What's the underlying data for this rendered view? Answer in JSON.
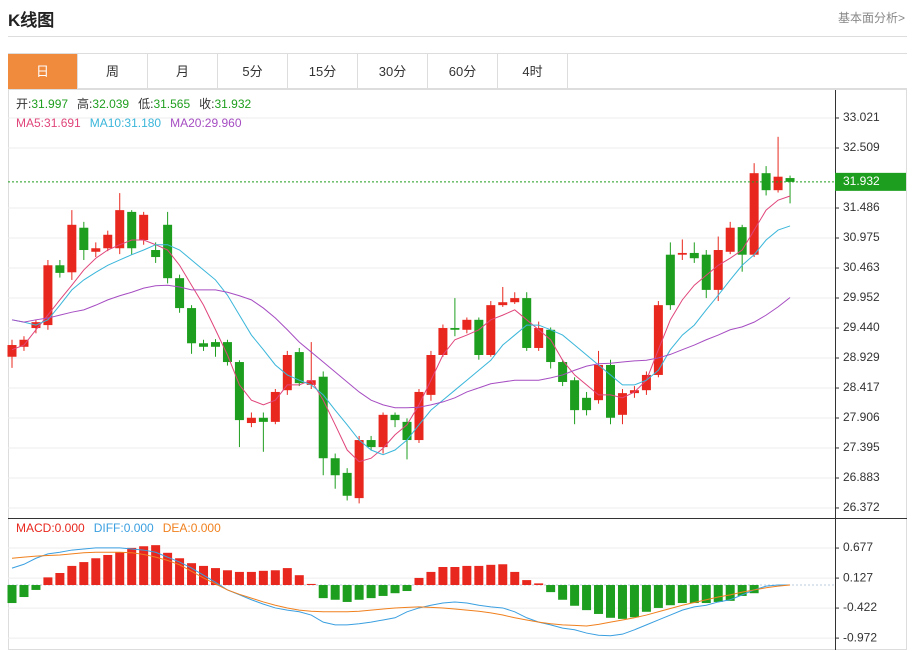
{
  "header": {
    "title": "K线图",
    "link": "基本面分析>"
  },
  "tabs": [
    "日",
    "周",
    "月",
    "5分",
    "15分",
    "30分",
    "60分",
    "4时"
  ],
  "active_tab": "日",
  "chart_data": [
    {
      "type": "candlestick",
      "up_color": "#e8281e",
      "down_color": "#1e9e1e",
      "grid": true,
      "ylim": [
        26.218,
        33.464
      ],
      "yticks": [
        33.021,
        32.509,
        31.486,
        30.975,
        30.463,
        29.952,
        {
          "value": 29.44,
          "label": "29.440"
        },
        28.929,
        28.417,
        27.906,
        27.395,
        26.883,
        26.372
      ],
      "price_line": {
        "value": 31.932,
        "label": "31.932",
        "color": "#1e9e1e"
      },
      "info": {
        "color": "#1e9e1e",
        "items": [
          {
            "label": "开:",
            "value": "31.997"
          },
          {
            "label": "高:",
            "value": "32.039"
          },
          {
            "label": "低:",
            "value": "31.565"
          },
          {
            "label": "收:",
            "value": "31.932"
          }
        ]
      },
      "open": [
        28.95,
        29.12,
        29.44,
        29.49,
        30.51,
        30.39,
        31.15,
        30.74,
        30.8,
        30.8,
        31.42,
        30.94,
        30.77,
        31.2,
        30.29,
        29.78,
        29.18,
        29.2,
        29.2,
        28.86,
        27.82,
        27.91,
        27.84,
        28.38,
        29.03,
        28.47,
        28.61,
        27.22,
        26.97,
        26.54,
        27.53,
        27.41,
        27.96,
        27.84,
        27.53,
        28.3,
        28.98,
        29.44,
        29.41,
        29.58,
        28.98,
        29.83,
        29.88,
        29.95,
        29.1,
        29.41,
        28.86,
        28.55,
        28.25,
        28.21,
        28.81,
        27.96,
        28.33,
        28.38,
        28.64,
        30.69,
        30.69,
        30.72,
        30.69,
        30.09,
        30.74,
        31.16,
        30.69,
        32.08,
        31.79,
        31.997
      ],
      "high": [
        29.24,
        29.3,
        29.58,
        30.6,
        30.6,
        31.45,
        31.25,
        30.9,
        31.1,
        31.74,
        31.45,
        31.42,
        30.9,
        31.42,
        30.35,
        29.83,
        29.24,
        29.25,
        29.24,
        28.89,
        28.0,
        28.0,
        28.4,
        29.05,
        29.1,
        29.2,
        28.7,
        27.3,
        27.05,
        27.6,
        27.6,
        28.0,
        28.0,
        27.9,
        28.4,
        29.05,
        29.5,
        29.95,
        29.62,
        29.62,
        29.9,
        30.14,
        30.05,
        30.05,
        29.55,
        29.45,
        28.9,
        28.6,
        28.35,
        29.05,
        28.9,
        28.4,
        28.45,
        28.7,
        29.9,
        30.9,
        30.95,
        30.9,
        30.77,
        31.0,
        31.25,
        31.2,
        32.25,
        32.2,
        32.7,
        32.039
      ],
      "low": [
        28.76,
        29.05,
        29.35,
        29.41,
        30.3,
        30.26,
        30.6,
        30.65,
        30.75,
        30.7,
        30.69,
        30.86,
        30.55,
        30.2,
        29.7,
        29.0,
        29.05,
        28.95,
        28.8,
        27.41,
        27.75,
        27.33,
        27.8,
        28.3,
        28.45,
        28.4,
        26.93,
        26.7,
        26.5,
        26.45,
        27.35,
        27.3,
        27.75,
        27.2,
        27.48,
        28.2,
        28.95,
        29.3,
        29.35,
        28.9,
        28.95,
        29.8,
        29.85,
        29.05,
        29.05,
        28.75,
        28.45,
        27.8,
        27.95,
        28.15,
        27.8,
        27.8,
        28.25,
        28.3,
        28.6,
        29.75,
        30.6,
        30.55,
        29.95,
        29.9,
        30.7,
        30.4,
        30.65,
        31.7,
        31.75,
        31.565
      ],
      "close": [
        29.15,
        29.24,
        29.54,
        30.51,
        30.38,
        31.2,
        30.77,
        30.8,
        31.03,
        31.45,
        30.8,
        31.37,
        30.65,
        30.29,
        29.78,
        29.18,
        29.12,
        29.12,
        28.86,
        27.87,
        27.91,
        27.84,
        28.35,
        28.98,
        28.5,
        28.55,
        27.22,
        26.93,
        26.58,
        27.53,
        27.41,
        27.96,
        27.87,
        27.53,
        28.35,
        28.98,
        29.44,
        29.41,
        29.58,
        28.98,
        29.83,
        29.88,
        29.95,
        29.1,
        29.44,
        28.86,
        28.52,
        28.04,
        28.04,
        28.81,
        27.91,
        28.33,
        28.38,
        28.64,
        29.83,
        29.83,
        30.72,
        30.63,
        30.09,
        30.77,
        31.15,
        30.69,
        32.08,
        31.79,
        32.02,
        31.932
      ],
      "series": [
        {
          "name": "MA5:",
          "legend_value": "31.691",
          "color": "#e0457b",
          "values": [
            29.07,
            29.15,
            29.41,
            29.66,
            29.92,
            30.17,
            30.43,
            30.63,
            30.77,
            30.86,
            30.94,
            30.94,
            30.86,
            30.77,
            30.51,
            30.17,
            29.83,
            29.41,
            28.98,
            28.47,
            28.21,
            28.13,
            28.21,
            28.47,
            28.47,
            28.55,
            28.21,
            27.79,
            27.36,
            27.16,
            27.22,
            27.39,
            27.62,
            27.79,
            28.13,
            28.55,
            28.98,
            29.24,
            29.32,
            29.41,
            29.58,
            29.66,
            29.75,
            29.58,
            29.41,
            29.24,
            28.89,
            28.64,
            28.47,
            28.3,
            28.3,
            28.25,
            28.35,
            28.55,
            29.07,
            29.58,
            29.92,
            30.17,
            30.34,
            30.51,
            30.63,
            30.77,
            31.11,
            31.45,
            31.62,
            31.691
          ]
        },
        {
          "name": "MA10:",
          "legend_value": "31.180",
          "color": "#3ab6da",
          "values": [
            29.58,
            29.54,
            29.49,
            29.58,
            29.83,
            30.09,
            30.26,
            30.39,
            30.51,
            30.6,
            30.69,
            30.77,
            30.86,
            30.86,
            30.77,
            30.6,
            30.43,
            30.26,
            30.0,
            29.66,
            29.32,
            29.07,
            28.81,
            28.64,
            28.55,
            28.47,
            28.3,
            28.04,
            27.79,
            27.53,
            27.36,
            27.28,
            27.36,
            27.53,
            27.79,
            28.04,
            28.21,
            28.38,
            28.55,
            28.72,
            28.89,
            29.15,
            29.32,
            29.49,
            29.49,
            29.41,
            29.32,
            29.15,
            28.98,
            28.81,
            28.64,
            28.47,
            28.47,
            28.55,
            28.72,
            29.07,
            29.32,
            29.49,
            29.75,
            30.0,
            30.26,
            30.51,
            30.69,
            30.94,
            31.11,
            31.18
          ]
        },
        {
          "name": "MA20:",
          "legend_value": "29.960",
          "color": "#a64dc2",
          "values": [
            29.58,
            29.54,
            29.58,
            29.61,
            29.66,
            29.71,
            29.75,
            29.83,
            29.92,
            29.99,
            30.05,
            30.12,
            30.16,
            30.17,
            30.14,
            30.09,
            30.09,
            30.09,
            30.05,
            29.99,
            29.92,
            29.78,
            29.61,
            29.41,
            29.2,
            29.03,
            28.86,
            28.69,
            28.52,
            28.35,
            28.21,
            28.13,
            28.08,
            28.08,
            28.09,
            28.13,
            28.18,
            28.25,
            28.35,
            28.42,
            28.49,
            28.52,
            28.55,
            28.55,
            28.55,
            28.59,
            28.64,
            28.72,
            28.79,
            28.83,
            28.84,
            28.86,
            28.88,
            28.89,
            28.93,
            28.99,
            29.07,
            29.15,
            29.24,
            29.32,
            29.41,
            29.46,
            29.54,
            29.66,
            29.8,
            29.96
          ]
        }
      ]
    },
    {
      "type": "macd",
      "up_color": "#e8281e",
      "down_color": "#1e9e1e",
      "grid": true,
      "ylim": [
        -1.19,
        1.209
      ],
      "yticks": [
        0.677,
        0.127,
        -0.422,
        -0.972
      ],
      "series": [
        {
          "name": "MACD:",
          "legend_value": "0.000",
          "color": "#e8281e",
          "values": [
            -0.33,
            -0.22,
            -0.09,
            0.14,
            0.22,
            0.35,
            0.42,
            0.49,
            0.55,
            0.6,
            0.68,
            0.71,
            0.73,
            0.59,
            0.49,
            0.4,
            0.35,
            0.31,
            0.27,
            0.24,
            0.24,
            0.26,
            0.27,
            0.31,
            0.18,
            0.02,
            -0.24,
            -0.27,
            -0.31,
            -0.27,
            -0.24,
            -0.2,
            -0.15,
            -0.11,
            0.13,
            0.24,
            0.33,
            0.33,
            0.35,
            0.35,
            0.37,
            0.38,
            0.24,
            0.09,
            0.03,
            -0.13,
            -0.27,
            -0.38,
            -0.46,
            -0.53,
            -0.6,
            -0.62,
            -0.59,
            -0.49,
            -0.42,
            -0.37,
            -0.33,
            -0.33,
            -0.33,
            -0.31,
            -0.29,
            -0.2,
            -0.15,
            0,
            0,
            0
          ]
        },
        {
          "name": "DIFF:",
          "legend_value": "0.000",
          "color": "#3a9fe0",
          "values": [
            0.31,
            0.38,
            0.49,
            0.57,
            0.6,
            0.64,
            0.66,
            0.68,
            0.68,
            0.68,
            0.66,
            0.64,
            0.6,
            0.51,
            0.42,
            0.31,
            0.18,
            0.05,
            -0.09,
            -0.18,
            -0.27,
            -0.35,
            -0.42,
            -0.46,
            -0.49,
            -0.55,
            -0.68,
            -0.73,
            -0.73,
            -0.71,
            -0.68,
            -0.64,
            -0.6,
            -0.49,
            -0.42,
            -0.37,
            -0.33,
            -0.31,
            -0.33,
            -0.37,
            -0.4,
            -0.42,
            -0.49,
            -0.6,
            -0.68,
            -0.73,
            -0.79,
            -0.82,
            -0.88,
            -0.92,
            -0.93,
            -0.9,
            -0.82,
            -0.73,
            -0.64,
            -0.55,
            -0.46,
            -0.4,
            -0.37,
            -0.31,
            -0.27,
            -0.18,
            -0.09,
            -0.02,
            0,
            0
          ]
        },
        {
          "name": "DEA:",
          "legend_value": "0.000",
          "color": "#f0801e",
          "values": [
            0.49,
            0.51,
            0.53,
            0.54,
            0.55,
            0.57,
            0.59,
            0.6,
            0.6,
            0.6,
            0.59,
            0.56,
            0.51,
            0.45,
            0.37,
            0.25,
            0.13,
            0.02,
            -0.09,
            -0.17,
            -0.24,
            -0.31,
            -0.37,
            -0.42,
            -0.46,
            -0.48,
            -0.49,
            -0.49,
            -0.49,
            -0.48,
            -0.46,
            -0.44,
            -0.42,
            -0.41,
            -0.4,
            -0.41,
            -0.42,
            -0.44,
            -0.46,
            -0.48,
            -0.51,
            -0.55,
            -0.6,
            -0.64,
            -0.68,
            -0.71,
            -0.73,
            -0.74,
            -0.75,
            -0.72,
            -0.68,
            -0.64,
            -0.6,
            -0.55,
            -0.49,
            -0.43,
            -0.37,
            -0.32,
            -0.27,
            -0.22,
            -0.18,
            -0.13,
            -0.09,
            -0.05,
            -0.02,
            0
          ]
        }
      ]
    }
  ]
}
